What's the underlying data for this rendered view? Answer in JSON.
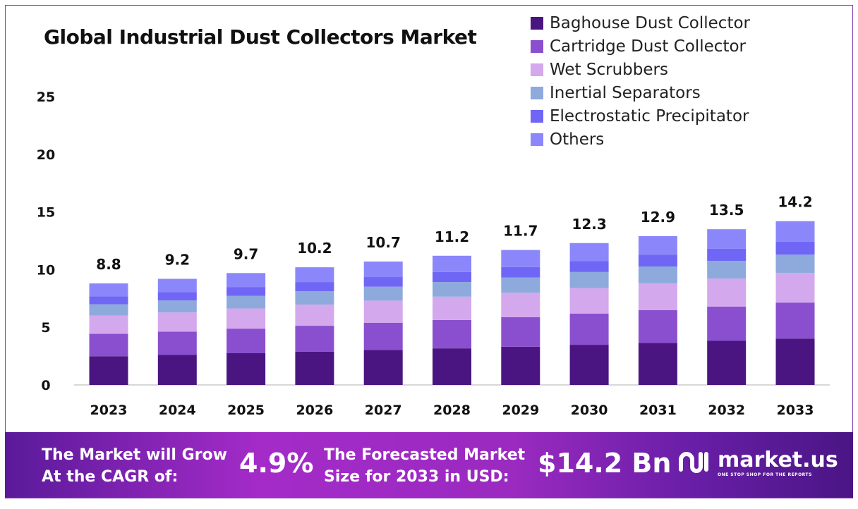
{
  "chart_data": {
    "type": "bar",
    "stacked": true,
    "title": "Global Industrial Dust Collectors Market",
    "xlabel": "",
    "ylabel": "",
    "ylim": [
      0,
      25
    ],
    "yticks": [
      "0",
      "5",
      "10",
      "15",
      "20",
      "25"
    ],
    "categories": [
      "2023",
      "2024",
      "2025",
      "2026",
      "2027",
      "2028",
      "2029",
      "2030",
      "2031",
      "2032",
      "2033"
    ],
    "totals": [
      "8.8",
      "9.2",
      "9.7",
      "10.2",
      "10.7",
      "11.2",
      "11.7",
      "12.3",
      "12.9",
      "13.5",
      "14.2"
    ],
    "legend_position": "top-right",
    "series": [
      {
        "name": "Baghouse Dust Collector",
        "color": "#4a1580",
        "values": [
          2.49,
          2.6,
          2.75,
          2.89,
          3.03,
          3.17,
          3.31,
          3.48,
          3.65,
          3.82,
          4.02
        ]
      },
      {
        "name": "Cartridge Dust Collector",
        "color": "#8a4fcf",
        "values": [
          1.94,
          2.02,
          2.13,
          2.24,
          2.35,
          2.46,
          2.57,
          2.71,
          2.84,
          2.97,
          3.12
        ]
      },
      {
        "name": "Wet Scrubbers",
        "color": "#d4a8ec",
        "values": [
          1.58,
          1.66,
          1.75,
          1.84,
          1.93,
          2.02,
          2.11,
          2.21,
          2.32,
          2.43,
          2.56
        ]
      },
      {
        "name": "Inertial Separators",
        "color": "#8eaadc",
        "values": [
          0.99,
          1.04,
          1.1,
          1.15,
          1.21,
          1.27,
          1.32,
          1.39,
          1.46,
          1.53,
          1.6
        ]
      },
      {
        "name": "Electrostatic Precipitator",
        "color": "#7066f5",
        "values": [
          0.69,
          0.72,
          0.76,
          0.8,
          0.83,
          0.87,
          0.91,
          0.96,
          1.01,
          1.05,
          1.11
        ]
      },
      {
        "name": "Others",
        "color": "#8b87fb",
        "values": [
          1.11,
          1.16,
          1.21,
          1.28,
          1.35,
          1.41,
          1.48,
          1.55,
          1.62,
          1.7,
          1.79
        ]
      }
    ]
  },
  "banner": {
    "cagr_label": "The Market will Grow At the CAGR of:",
    "cagr_value": "4.9%",
    "forecast_label": "The Forecasted Market Size for 2033 in USD:",
    "forecast_value": "$14.2 Bn",
    "brand": "market.us",
    "tagline": "ONE STOP SHOP FOR THE REPORTS"
  }
}
